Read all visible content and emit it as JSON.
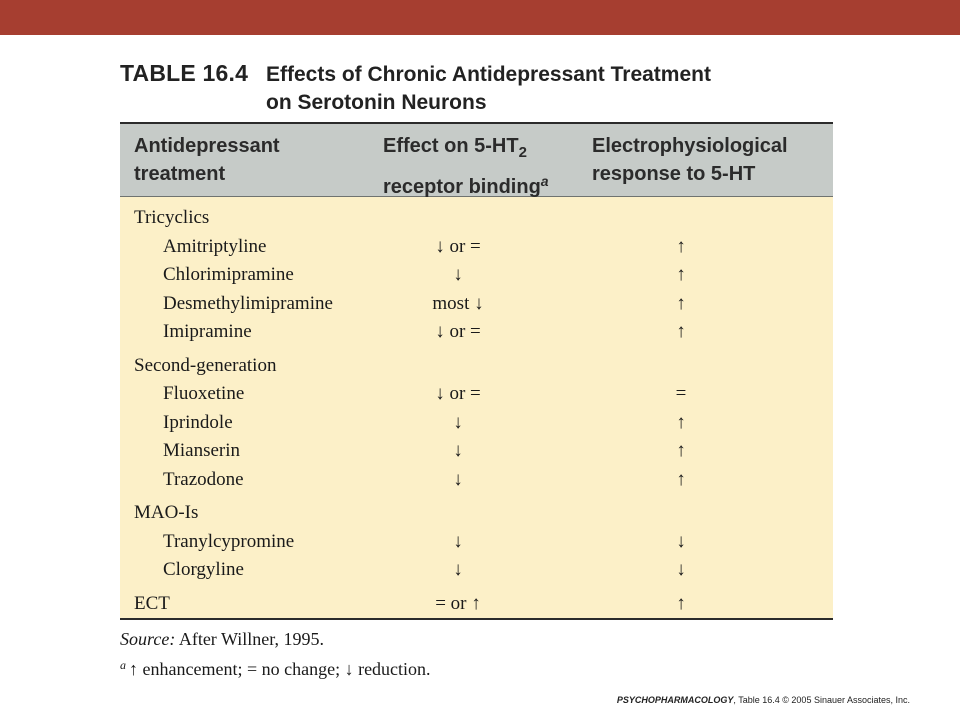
{
  "title": {
    "label": "TABLE 16.4",
    "text_line1": "Effects of Chronic Antidepressant Treatment",
    "text_line2": "on Serotonin Neurons"
  },
  "header": {
    "col1_line1": "Antidepressant",
    "col1_line2": "treatment",
    "col2_line1_prefix": "Effect on 5-HT",
    "col2_subscript": "2",
    "col2_line2": "receptor binding",
    "col2_superscript": "a",
    "col3_line1": "Electrophysiological",
    "col3_line2": "response to 5-HT"
  },
  "rows": [
    {
      "treatment": "Tricyclics",
      "binding": "",
      "response": ""
    },
    {
      "treatment": "Amitriptyline",
      "binding": "↓ or =",
      "response": "↑"
    },
    {
      "treatment": "Chlorimipramine",
      "binding": "↓",
      "response": "↑"
    },
    {
      "treatment": "Desmethylimipramine",
      "binding": "most ↓",
      "response": "↑"
    },
    {
      "treatment": "Imipramine",
      "binding": "↓ or =",
      "response": "↑"
    },
    {
      "treatment": "Second-generation",
      "binding": "",
      "response": ""
    },
    {
      "treatment": "Fluoxetine",
      "binding": "↓ or =",
      "response": "="
    },
    {
      "treatment": "Iprindole",
      "binding": "↓",
      "response": "↑"
    },
    {
      "treatment": "Mianserin",
      "binding": "↓",
      "response": "↑"
    },
    {
      "treatment": "Trazodone",
      "binding": "↓",
      "response": "↑"
    },
    {
      "treatment": "MAO-Is",
      "binding": "",
      "response": ""
    },
    {
      "treatment": "Tranylcypromine",
      "binding": "↓",
      "response": "↓"
    },
    {
      "treatment": "Clorgyline",
      "binding": "↓",
      "response": "↓"
    },
    {
      "treatment": "ECT",
      "binding": "= or ↑",
      "response": "↑"
    }
  ],
  "footer": {
    "source_label": "Source:",
    "source_text": "After Willner, 1995.",
    "note_marker": "a",
    "note_text": "↑ enhancement; = no change; ↓ reduction."
  },
  "credit": {
    "book": "PSYCHOPHARMACOLOGY",
    "rest": ", Table 16.4  © 2005 Sinauer Associates, Inc."
  },
  "colors": {
    "top_bar": "#a63e30",
    "header_bg": "#c6cbc8",
    "body_bg": "#fcf0c8"
  }
}
